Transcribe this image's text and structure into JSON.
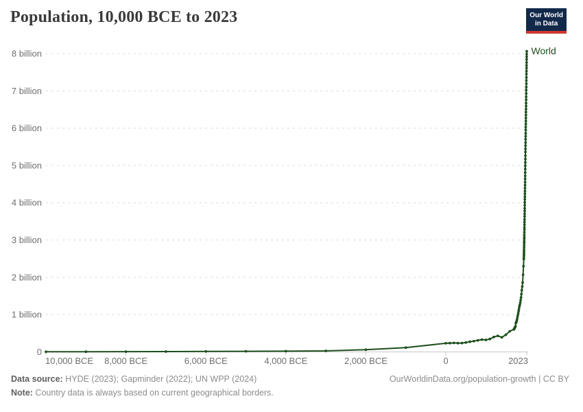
{
  "header": {
    "title": "Population, 10,000 BCE to 2023",
    "logo": {
      "line1": "Our World",
      "line2": "in Data",
      "bg": "#12294a",
      "bar": "#cf3830"
    }
  },
  "footer": {
    "data_source_label": "Data source:",
    "data_source_text": " HYDE (2023); Gapminder (2022); UN WPP (2024)",
    "note_label": "Note:",
    "note_text": " Country data is always based on current geographical borders.",
    "citation": "OurWorldinData.org/population-growth | CC BY"
  },
  "chart_data": {
    "type": "line",
    "title": "Population, 10,000 BCE to 2023",
    "xlabel": "",
    "ylabel": "",
    "xlim": [
      -10000,
      2023
    ],
    "ylim": [
      0,
      8.22
    ],
    "grid": true,
    "legend_position": "end-of-line",
    "style": {
      "grid_color": "#dcdcdc",
      "axis_color": "#c8c8c8",
      "tick_label_color": "#6e6e6e",
      "tick_font_size": 13,
      "marker_radius": 1.9,
      "line_width": 2
    },
    "x_ticks": [
      {
        "value": -10000,
        "label": "10,000 BCE",
        "align": "start"
      },
      {
        "value": -8000,
        "label": "8,000 BCE",
        "align": "middle"
      },
      {
        "value": -6000,
        "label": "6,000 BCE",
        "align": "middle"
      },
      {
        "value": -4000,
        "label": "4,000 BCE",
        "align": "middle"
      },
      {
        "value": -2000,
        "label": "2,000 BCE",
        "align": "middle"
      },
      {
        "value": 0,
        "label": "0",
        "align": "middle"
      },
      {
        "value": 2023,
        "label": "2023",
        "align": "end"
      }
    ],
    "y_ticks": [
      {
        "value": 0,
        "label": "0"
      },
      {
        "value": 1,
        "label": "1 billion"
      },
      {
        "value": 2,
        "label": "2 billion"
      },
      {
        "value": 3,
        "label": "3 billion"
      },
      {
        "value": 4,
        "label": "4 billion"
      },
      {
        "value": 5,
        "label": "5 billion"
      },
      {
        "value": 6,
        "label": "6 billion"
      },
      {
        "value": 7,
        "label": "7 billion"
      },
      {
        "value": 8,
        "label": "8 billion"
      }
    ],
    "series": [
      {
        "name": "World",
        "color": "#1d4f1d",
        "units": "billions of people",
        "points": [
          [
            -10000,
            0.004
          ],
          [
            -9000,
            0.006
          ],
          [
            -8000,
            0.007
          ],
          [
            -7000,
            0.01
          ],
          [
            -6000,
            0.012
          ],
          [
            -5000,
            0.016
          ],
          [
            -4000,
            0.021
          ],
          [
            -3000,
            0.027
          ],
          [
            -2000,
            0.058
          ],
          [
            -1000,
            0.115
          ],
          [
            0,
            0.232
          ],
          [
            100,
            0.236
          ],
          [
            200,
            0.241
          ],
          [
            300,
            0.235
          ],
          [
            400,
            0.238
          ],
          [
            500,
            0.253
          ],
          [
            600,
            0.272
          ],
          [
            700,
            0.289
          ],
          [
            800,
            0.31
          ],
          [
            900,
            0.33
          ],
          [
            1000,
            0.323
          ],
          [
            1100,
            0.347
          ],
          [
            1200,
            0.4
          ],
          [
            1300,
            0.43
          ],
          [
            1400,
            0.39
          ],
          [
            1500,
            0.461
          ],
          [
            1600,
            0.554
          ],
          [
            1700,
            0.603
          ],
          [
            1710,
            0.622
          ],
          [
            1720,
            0.641
          ],
          [
            1730,
            0.661
          ],
          [
            1740,
            0.685
          ],
          [
            1750,
            0.771
          ],
          [
            1760,
            0.797
          ],
          [
            1770,
            0.826
          ],
          [
            1780,
            0.87
          ],
          [
            1790,
            0.929
          ],
          [
            1800,
            0.985
          ],
          [
            1810,
            1.04
          ],
          [
            1820,
            1.1
          ],
          [
            1830,
            1.16
          ],
          [
            1840,
            1.22
          ],
          [
            1850,
            1.263
          ],
          [
            1860,
            1.32
          ],
          [
            1870,
            1.39
          ],
          [
            1880,
            1.46
          ],
          [
            1890,
            1.55
          ],
          [
            1900,
            1.654
          ],
          [
            1910,
            1.75
          ],
          [
            1920,
            1.86
          ],
          [
            1930,
            2.07
          ],
          [
            1940,
            2.3
          ],
          [
            1950,
            2.49
          ],
          [
            1951,
            2.54
          ],
          [
            1952,
            2.59
          ],
          [
            1953,
            2.64
          ],
          [
            1954,
            2.69
          ],
          [
            1955,
            2.74
          ],
          [
            1956,
            2.8
          ],
          [
            1957,
            2.86
          ],
          [
            1958,
            2.92
          ],
          [
            1959,
            2.97
          ],
          [
            1960,
            3.03
          ],
          [
            1961,
            3.08
          ],
          [
            1962,
            3.14
          ],
          [
            1963,
            3.21
          ],
          [
            1964,
            3.28
          ],
          [
            1965,
            3.34
          ],
          [
            1966,
            3.41
          ],
          [
            1967,
            3.48
          ],
          [
            1968,
            3.55
          ],
          [
            1969,
            3.63
          ],
          [
            1970,
            3.7
          ],
          [
            1971,
            3.78
          ],
          [
            1972,
            3.85
          ],
          [
            1973,
            3.93
          ],
          [
            1974,
            4.01
          ],
          [
            1975,
            4.09
          ],
          [
            1976,
            4.16
          ],
          [
            1977,
            4.24
          ],
          [
            1978,
            4.31
          ],
          [
            1979,
            4.39
          ],
          [
            1980,
            4.47
          ],
          [
            1981,
            4.55
          ],
          [
            1982,
            4.64
          ],
          [
            1983,
            4.72
          ],
          [
            1984,
            4.81
          ],
          [
            1985,
            4.9
          ],
          [
            1986,
            4.99
          ],
          [
            1987,
            5.08
          ],
          [
            1988,
            5.17
          ],
          [
            1989,
            5.26
          ],
          [
            1990,
            5.36
          ],
          [
            1991,
            5.44
          ],
          [
            1992,
            5.53
          ],
          [
            1993,
            5.61
          ],
          [
            1994,
            5.7
          ],
          [
            1995,
            5.78
          ],
          [
            1996,
            5.86
          ],
          [
            1997,
            5.95
          ],
          [
            1998,
            6.03
          ],
          [
            1999,
            6.11
          ],
          [
            2000,
            6.19
          ],
          [
            2001,
            6.27
          ],
          [
            2002,
            6.35
          ],
          [
            2003,
            6.43
          ],
          [
            2004,
            6.51
          ],
          [
            2005,
            6.59
          ],
          [
            2006,
            6.67
          ],
          [
            2007,
            6.76
          ],
          [
            2008,
            6.84
          ],
          [
            2009,
            6.93
          ],
          [
            2010,
            7.02
          ],
          [
            2011,
            7.1
          ],
          [
            2012,
            7.19
          ],
          [
            2013,
            7.28
          ],
          [
            2014,
            7.36
          ],
          [
            2015,
            7.45
          ],
          [
            2016,
            7.53
          ],
          [
            2017,
            7.61
          ],
          [
            2018,
            7.68
          ],
          [
            2019,
            7.76
          ],
          [
            2020,
            7.84
          ],
          [
            2021,
            7.91
          ],
          [
            2022,
            7.98
          ],
          [
            2023,
            8.06
          ]
        ]
      }
    ]
  }
}
